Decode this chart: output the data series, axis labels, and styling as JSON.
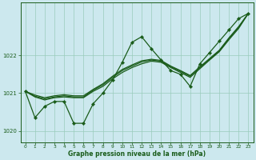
{
  "xlabel": "Graphe pression niveau de la mer (hPa)",
  "xlim": [
    -0.5,
    23.5
  ],
  "ylim": [
    1019.7,
    1023.4
  ],
  "yticks": [
    1020,
    1021,
    1022
  ],
  "xticks": [
    0,
    1,
    2,
    3,
    4,
    5,
    6,
    7,
    8,
    9,
    10,
    11,
    12,
    13,
    14,
    15,
    16,
    17,
    18,
    19,
    20,
    21,
    22,
    23
  ],
  "background_color": "#cce8ee",
  "grid_color": "#99ccbb",
  "line_color": "#1a5c1a",
  "marker_color": "#1a5c1a",
  "main_series": [
    1021.05,
    1020.35,
    1020.65,
    1020.78,
    1020.78,
    1020.2,
    1020.2,
    1020.72,
    1021.0,
    1021.35,
    1021.82,
    1022.35,
    1022.5,
    1022.18,
    1021.88,
    1021.6,
    1021.5,
    1021.18,
    1021.78,
    1022.08,
    1022.38,
    1022.68,
    1022.98,
    1023.12
  ],
  "line2": [
    1021.05,
    1020.9,
    1020.82,
    1020.88,
    1020.9,
    1020.88,
    1020.88,
    1021.05,
    1021.18,
    1021.38,
    1021.55,
    1021.68,
    1021.78,
    1021.85,
    1021.82,
    1021.68,
    1021.55,
    1021.42,
    1021.65,
    1021.88,
    1022.1,
    1022.42,
    1022.72,
    1023.12
  ],
  "line3": [
    1021.05,
    1020.92,
    1020.85,
    1020.9,
    1020.93,
    1020.9,
    1020.9,
    1021.08,
    1021.22,
    1021.42,
    1021.6,
    1021.72,
    1021.83,
    1021.88,
    1021.85,
    1021.7,
    1021.58,
    1021.45,
    1021.68,
    1021.9,
    1022.12,
    1022.45,
    1022.75,
    1023.12
  ],
  "line4": [
    1021.05,
    1020.95,
    1020.88,
    1020.93,
    1020.96,
    1020.93,
    1020.93,
    1021.1,
    1021.25,
    1021.45,
    1021.63,
    1021.75,
    1021.86,
    1021.9,
    1021.87,
    1021.72,
    1021.6,
    1021.47,
    1021.7,
    1021.92,
    1022.14,
    1022.47,
    1022.77,
    1023.12
  ]
}
